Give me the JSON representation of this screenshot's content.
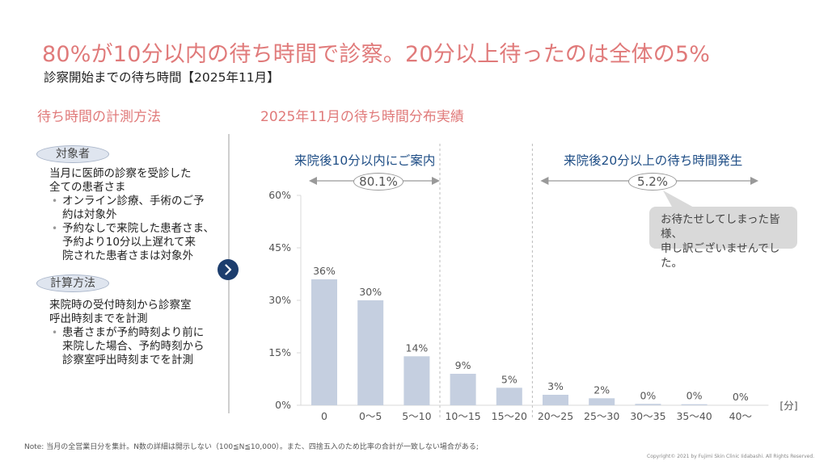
{
  "header": {
    "headline": "80%が10分以内の待ち時間で診察。20分以上待ったのは全体の5%",
    "subtitle": "診察開始までの待ち時間【2025年11月】"
  },
  "left_panel": {
    "title": "待ち時間の計測方法",
    "sections": [
      {
        "pill": "対象者",
        "lead": [
          "当月に医師の診察を受診した",
          "全ての患者さま"
        ],
        "bullets": [
          [
            "オンライン診療、手術のご予",
            "約は対象外"
          ],
          [
            "予約なしで来院した患者さま、",
            "予約より10分以上遅れて来",
            "院された患者さまは対象外"
          ]
        ]
      },
      {
        "pill": "計算方法",
        "lead": [
          "来院時の受付時刻から診察室",
          "呼出時刻までを計測"
        ],
        "bullets": [
          [
            "患者さまが予約時刻より前に",
            "来院した場合、予約時刻から",
            "診察室呼出時刻までを計測"
          ]
        ]
      }
    ],
    "next_icon": "chevron-right-icon"
  },
  "annotations": {
    "within_10": {
      "label": "来院後10分以内にご案内",
      "value": "80.1%"
    },
    "over_20": {
      "label": "来院後20分以上の待ち時間発生",
      "value": "5.2%"
    },
    "apology": [
      "お待たせしてしまった皆様、",
      "申し訳ございませんでした。"
    ]
  },
  "chart_data": {
    "type": "bar",
    "title": "2025年11月の待ち時間分布実績",
    "xlabel": "[分]",
    "ylabel": "",
    "categories": [
      "0",
      "0〜5",
      "5〜10",
      "10〜15",
      "15〜20",
      "20〜25",
      "25〜30",
      "30〜35",
      "35〜40",
      "40〜"
    ],
    "values": [
      36,
      30,
      14,
      9,
      5,
      3,
      2,
      0.4,
      0.3,
      0
    ],
    "data_labels": [
      "36%",
      "30%",
      "14%",
      "9%",
      "5%",
      "3%",
      "2%",
      "0%",
      "0%",
      "0%"
    ],
    "ylim": [
      0,
      60
    ],
    "yticks": [
      0,
      15,
      30,
      45,
      60
    ],
    "ytick_labels": [
      "0%",
      "15%",
      "30%",
      "45%",
      "60%"
    ],
    "grid": false,
    "bar_color": "#c5cfe0",
    "dividers_after_category_index": [
      2,
      4
    ]
  },
  "footer": {
    "note": "Note: 当月の全営業日分を集計。N数の詳細は開示しない（100≦N≦10,000）。また、四捨五入のため比率の合計が一致しない場合がある;",
    "copyright": "Copyright© 2021 by Fujimi Skin Clinic Iidabashi. All Rights Reserved."
  },
  "colors": {
    "headline": "#e07a7a",
    "accent_navy": "#1d3e6e",
    "range_label": "#1f4e86",
    "bar": "#c5cfe0"
  }
}
